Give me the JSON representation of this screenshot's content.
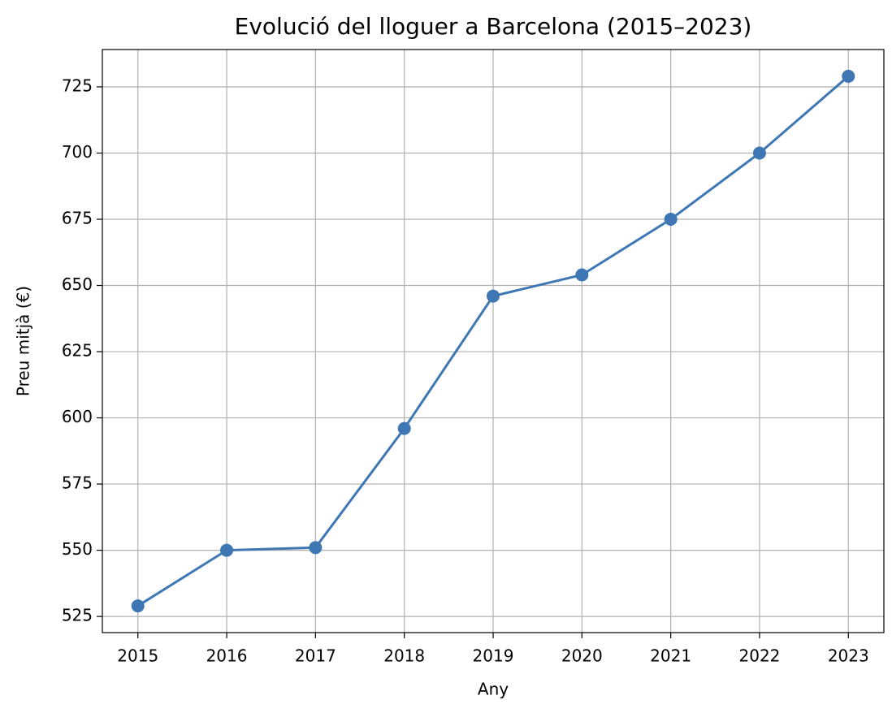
{
  "chart_data": {
    "type": "line",
    "title": "Evolució del lloguer a Barcelona (2015–2023)",
    "x_label": "Any",
    "y_label": "Preu mitjà (€)",
    "x": [
      2015,
      2016,
      2017,
      2018,
      2019,
      2020,
      2021,
      2022,
      2023
    ],
    "series": [
      {
        "name": "Preu mitjà",
        "color": "#3f77b4",
        "values": [
          529,
          550,
          551,
          596,
          646,
          654,
          675,
          700,
          729
        ]
      }
    ],
    "xlim": [
      2014.6,
      2023.4
    ],
    "xticks": [
      2015,
      2016,
      2017,
      2018,
      2019,
      2020,
      2021,
      2022,
      2023
    ],
    "ylim": [
      518.9,
      739.1
    ],
    "yticks": [
      525,
      550,
      575,
      600,
      625,
      650,
      675,
      700,
      725
    ],
    "grid": true
  }
}
